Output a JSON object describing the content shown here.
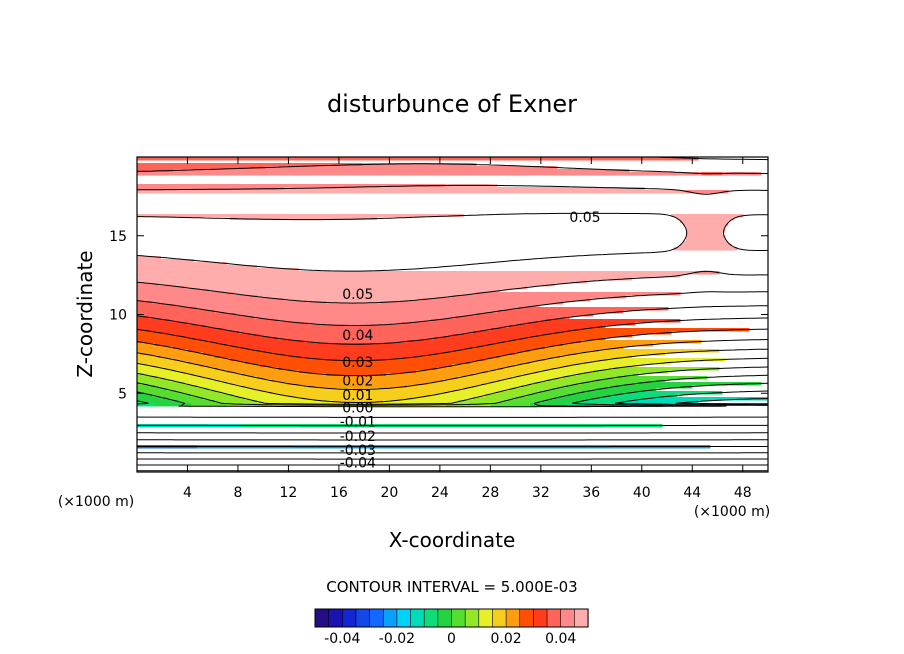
{
  "chart_data": {
    "type": "contour",
    "title": "disturbunce of Exner",
    "xlabel": "X-coordinate",
    "ylabel": "Z-coordinate",
    "x_unit_left": "(×1000 m)",
    "x_unit_right": "(×1000 m)",
    "xlim": [
      0,
      50
    ],
    "ylim": [
      0,
      20
    ],
    "x_ticks": [
      4,
      8,
      12,
      16,
      20,
      24,
      28,
      32,
      36,
      40,
      44,
      48
    ],
    "y_ticks": [
      5,
      10,
      15
    ],
    "contour_interval_text": "CONTOUR INTERVAL = 5.000E-03",
    "contour_interval": 0.005,
    "colorbar": {
      "min": -0.05,
      "max": 0.05,
      "tick_values": [
        -0.04,
        -0.02,
        0,
        0.02,
        0.04
      ],
      "tick_labels": [
        "-0.04",
        "-0.02",
        "0",
        "0.02",
        "0.04"
      ]
    },
    "contour_labels": [
      {
        "text": "0.05",
        "x": 35.5,
        "z": 16.2
      },
      {
        "text": "0.05",
        "x": 17.5,
        "z": 11.3
      },
      {
        "text": "0.04",
        "x": 17.5,
        "z": 8.7
      },
      {
        "text": "0.03",
        "x": 17.5,
        "z": 7.0
      },
      {
        "text": "0.02",
        "x": 17.5,
        "z": 5.8
      },
      {
        "text": "0.01",
        "x": 17.5,
        "z": 4.9
      },
      {
        "text": "0.00",
        "x": 17.5,
        "z": 4.1
      },
      {
        "text": "-0.01",
        "x": 17.5,
        "z": 3.2
      },
      {
        "text": "-0.02",
        "x": 17.5,
        "z": 2.3
      },
      {
        "text": "-0.03",
        "x": 17.5,
        "z": 1.4
      },
      {
        "text": "-0.04",
        "x": 17.5,
        "z": 0.6
      }
    ],
    "colors": {
      "max_region": "#ffffff",
      "min": "#2a0a6e",
      "mid": "#22cc44",
      "max": "#ff1a1a"
    }
  }
}
